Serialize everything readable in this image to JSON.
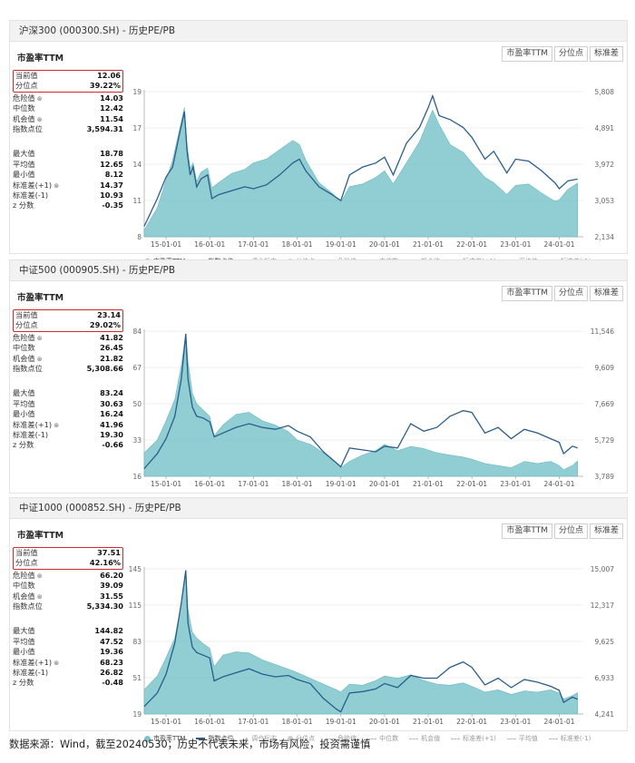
{
  "buttons": [
    "市盈率TTM",
    "分位点",
    "标准差"
  ],
  "subtitle": "市盈率TTM",
  "legend": {
    "items": [
      "市盈率TTM",
      "指数点位",
      "调仓标志",
      "分位点",
      "危险值",
      "中位数",
      "机会值",
      "标准差(+1)",
      "平均值",
      "标准差(-1)"
    ]
  },
  "colors": {
    "pe_fill": "#7cc5cb",
    "index_line": "#2a5d8a",
    "highlight": "#d42a2a",
    "header_bg": "#f2f2f2"
  },
  "footer": "数据来源：Wind，截至20240530；历史不代表未来，市场有风险，投资需谨慎",
  "panels": [
    {
      "title": "沪深300 (000300.SH) - 历史PE/PB",
      "stats": [
        {
          "label": "当前值",
          "value": "12.06"
        },
        {
          "label": "分位点",
          "value": "39.22%"
        },
        {
          "label": "危险值",
          "value": "14.03",
          "info": true
        },
        {
          "label": "中位数",
          "value": "12.42"
        },
        {
          "label": "机会值",
          "value": "11.54",
          "info": true
        },
        {
          "label": "指数点位",
          "value": "3,594.31"
        },
        {
          "label": "最大值",
          "value": "18.78"
        },
        {
          "label": "平均值",
          "value": "12.65"
        },
        {
          "label": "最小值",
          "value": "8.12"
        },
        {
          "label": "标准差(+1)",
          "value": "14.37",
          "info": true
        },
        {
          "label": "标准差(-1)",
          "value": "10.93"
        },
        {
          "label": "z 分数",
          "value": "-0.35"
        }
      ],
      "chart_data": {
        "type": "area",
        "x_ticks": [
          "15-01-01",
          "16-01-01",
          "17-01-01",
          "18-01-01",
          "19-01-01",
          "20-01-01",
          "21-01-01",
          "22-01-01",
          "23-01-01",
          "24-01-01"
        ],
        "x_range": [
          2014.5,
          2024.55
        ],
        "y_left": {
          "ticks": [
            "19",
            "17",
            "14",
            "11",
            "8"
          ],
          "range": [
            8,
            19
          ]
        },
        "y_right": {
          "ticks": [
            "5,808",
            "4,891",
            "3,972",
            "3,053",
            "2,134"
          ],
          "range": [
            2134,
            5808
          ]
        },
        "series": [
          {
            "name": "市盈率TTM",
            "kind": "area",
            "axis": "left",
            "x": [
              2014.5,
              2014.8,
              2015.0,
              2015.15,
              2015.3,
              2015.42,
              2015.48,
              2015.55,
              2015.62,
              2015.7,
              2015.8,
              2015.95,
              2016.05,
              2016.2,
              2016.5,
              2016.8,
              2017.0,
              2017.3,
              2017.6,
              2017.9,
              2018.05,
              2018.2,
              2018.5,
              2018.8,
              2019.0,
              2019.2,
              2019.5,
              2019.8,
              2020.0,
              2020.2,
              2020.5,
              2020.8,
              2021.0,
              2021.1,
              2021.25,
              2021.5,
              2021.8,
              2022.0,
              2022.3,
              2022.5,
              2022.8,
              2023.0,
              2023.3,
              2023.6,
              2023.9,
              2024.0,
              2024.2,
              2024.42
            ],
            "values": [
              8.5,
              10.2,
              12.3,
              13.8,
              16.0,
              17.8,
              15.0,
              13.2,
              13.6,
              12.2,
              12.9,
              13.2,
              11.7,
              12.1,
              12.8,
              13.1,
              13.6,
              13.9,
              14.6,
              15.3,
              15.0,
              13.8,
              12.1,
              11.3,
              10.6,
              11.8,
              12.0,
              12.5,
              13.0,
              12.0,
              13.6,
              15.2,
              16.8,
              17.6,
              16.5,
              15.0,
              14.4,
              13.6,
              12.5,
              12.1,
              11.2,
              11.9,
              12.0,
              11.3,
              10.7,
              10.8,
              11.6,
              12.06
            ]
          },
          {
            "name": "指数点位",
            "kind": "line",
            "axis": "right",
            "x": [
              2014.5,
              2014.8,
              2015.0,
              2015.15,
              2015.3,
              2015.42,
              2015.48,
              2015.55,
              2015.62,
              2015.7,
              2015.8,
              2015.95,
              2016.05,
              2016.2,
              2016.5,
              2016.8,
              2017.0,
              2017.3,
              2017.6,
              2017.9,
              2018.05,
              2018.2,
              2018.5,
              2018.8,
              2019.0,
              2019.2,
              2019.5,
              2019.8,
              2020.0,
              2020.2,
              2020.5,
              2020.8,
              2021.0,
              2021.1,
              2021.25,
              2021.5,
              2021.8,
              2022.0,
              2022.3,
              2022.5,
              2022.8,
              2023.0,
              2023.3,
              2023.6,
              2023.9,
              2024.0,
              2024.2,
              2024.42
            ],
            "values": [
              2400,
              3100,
              3650,
              3900,
              4700,
              5300,
              4300,
              3700,
              3900,
              3400,
              3600,
              3700,
              3100,
              3200,
              3300,
              3400,
              3350,
              3450,
              3700,
              4000,
              4100,
              3800,
              3400,
              3200,
              3050,
              3700,
              3900,
              4000,
              4150,
              3700,
              4500,
              4900,
              5400,
              5700,
              5200,
              5100,
              4900,
              4650,
              4100,
              4300,
              3750,
              4100,
              4050,
              3800,
              3500,
              3350,
              3550,
              3594.31
            ]
          }
        ]
      }
    },
    {
      "title": "中证500 (000905.SH) - 历史PE/PB",
      "stats": [
        {
          "label": "当前值",
          "value": "23.14"
        },
        {
          "label": "分位点",
          "value": "29.02%"
        },
        {
          "label": "危险值",
          "value": "41.82",
          "info": true
        },
        {
          "label": "中位数",
          "value": "26.45"
        },
        {
          "label": "机会值",
          "value": "21.82",
          "info": true
        },
        {
          "label": "指数点位",
          "value": "5,308.66"
        },
        {
          "label": "最大值",
          "value": "83.24"
        },
        {
          "label": "平均值",
          "value": "30.63"
        },
        {
          "label": "最小值",
          "value": "16.24"
        },
        {
          "label": "标准差(+1)",
          "value": "41.96",
          "info": true
        },
        {
          "label": "标准差(-1)",
          "value": "19.30"
        },
        {
          "label": "z 分数",
          "value": "-0.66"
        }
      ],
      "chart_data": {
        "type": "area",
        "x_ticks": [
          "15-01-01",
          "16-01-01",
          "17-01-01",
          "18-01-01",
          "19-01-01",
          "20-01-01",
          "21-01-01",
          "22-01-01",
          "23-01-01",
          "24-01-01"
        ],
        "x_range": [
          2014.5,
          2024.55
        ],
        "y_left": {
          "ticks": [
            "84",
            "67",
            "50",
            "33",
            "16"
          ],
          "range": [
            16,
            84
          ]
        },
        "y_right": {
          "ticks": [
            "11,546",
            "9,609",
            "7,669",
            "5,729",
            "3,789"
          ],
          "range": [
            3789,
            11546
          ]
        },
        "series": [
          {
            "name": "市盈率TTM",
            "kind": "area",
            "axis": "left",
            "x": [
              2014.5,
              2014.8,
              2015.0,
              2015.2,
              2015.35,
              2015.45,
              2015.5,
              2015.6,
              2015.7,
              2015.85,
              2016.0,
              2016.1,
              2016.3,
              2016.6,
              2016.9,
              2017.2,
              2017.5,
              2017.8,
              2018.0,
              2018.3,
              2018.6,
              2018.9,
              2019.0,
              2019.2,
              2019.5,
              2019.8,
              2020.0,
              2020.3,
              2020.6,
              2020.9,
              2021.2,
              2021.5,
              2021.8,
              2022.0,
              2022.3,
              2022.6,
              2022.9,
              2023.2,
              2023.5,
              2023.8,
              2024.0,
              2024.1,
              2024.3,
              2024.42
            ],
            "values": [
              27,
              33,
              42,
              52,
              68,
              83,
              70,
              55,
              50,
              47,
              44,
              35,
              40,
              45,
              46,
              42,
              40,
              37,
              33,
              31,
              27,
              22,
              20,
              23,
              26,
              28,
              31,
              28,
              30,
              29,
              27,
              26,
              25,
              24,
              22,
              21,
              20,
              23,
              22,
              23,
              21,
              19,
              21,
              23.14
            ]
          },
          {
            "name": "指数点位",
            "kind": "line",
            "axis": "right",
            "x": [
              2014.5,
              2014.8,
              2015.0,
              2015.2,
              2015.35,
              2015.45,
              2015.5,
              2015.6,
              2015.7,
              2015.85,
              2016.0,
              2016.1,
              2016.3,
              2016.6,
              2016.9,
              2017.2,
              2017.5,
              2017.8,
              2018.0,
              2018.3,
              2018.6,
              2018.9,
              2019.0,
              2019.2,
              2019.5,
              2019.8,
              2020.0,
              2020.3,
              2020.6,
              2020.9,
              2021.2,
              2021.5,
              2021.8,
              2022.0,
              2022.3,
              2022.6,
              2022.9,
              2023.2,
              2023.5,
              2023.8,
              2024.0,
              2024.1,
              2024.3,
              2024.42
            ],
            "values": [
              4200,
              5000,
              5800,
              7000,
              9000,
              11400,
              9000,
              7500,
              7000,
              6900,
              6700,
              5900,
              6100,
              6400,
              6600,
              6400,
              6300,
              6500,
              6200,
              5900,
              5100,
              4500,
              4300,
              5300,
              5200,
              5100,
              5400,
              5300,
              6600,
              6200,
              6400,
              7000,
              7300,
              7200,
              6100,
              6400,
              5800,
              6300,
              6100,
              5800,
              5600,
              5000,
              5400,
              5308.66
            ]
          }
        ]
      }
    },
    {
      "title": "中证1000 (000852.SH) - 历史PE/PB",
      "stats": [
        {
          "label": "当前值",
          "value": "37.51"
        },
        {
          "label": "分位点",
          "value": "42.16%"
        },
        {
          "label": "危险值",
          "value": "66.20",
          "info": true
        },
        {
          "label": "中位数",
          "value": "39.09"
        },
        {
          "label": "机会值",
          "value": "31.55",
          "info": true
        },
        {
          "label": "指数点位",
          "value": "5,334.30"
        },
        {
          "label": "最大值",
          "value": "144.82"
        },
        {
          "label": "平均值",
          "value": "47.52"
        },
        {
          "label": "最小值",
          "value": "19.36"
        },
        {
          "label": "标准差(+1)",
          "value": "68.23",
          "info": true
        },
        {
          "label": "标准差(-1)",
          "value": "26.82"
        },
        {
          "label": "z 分数",
          "value": "-0.48"
        }
      ],
      "chart_data": {
        "type": "area",
        "x_ticks": [
          "15-01-01",
          "16-01-01",
          "17-01-01",
          "18-01-01",
          "19-01-01",
          "20-01-01",
          "21-01-01",
          "22-01-01",
          "23-01-01",
          "24-01-01"
        ],
        "x_range": [
          2014.5,
          2024.55
        ],
        "y_left": {
          "ticks": [
            "145",
            "115",
            "83",
            "51",
            "19"
          ],
          "range": [
            19,
            145
          ]
        },
        "y_right": {
          "ticks": [
            "15,007",
            "12,317",
            "9,625",
            "6,933",
            "4,241"
          ],
          "range": [
            4241,
            15007
          ]
        },
        "series": [
          {
            "name": "市盈率TTM",
            "kind": "area",
            "axis": "left",
            "x": [
              2014.5,
              2014.8,
              2015.0,
              2015.2,
              2015.35,
              2015.45,
              2015.5,
              2015.6,
              2015.7,
              2015.85,
              2016.0,
              2016.1,
              2016.3,
              2016.6,
              2016.9,
              2017.2,
              2017.5,
              2017.8,
              2018.0,
              2018.3,
              2018.6,
              2018.9,
              2019.0,
              2019.2,
              2019.5,
              2019.8,
              2020.0,
              2020.3,
              2020.6,
              2020.9,
              2021.2,
              2021.5,
              2021.8,
              2022.0,
              2022.3,
              2022.6,
              2022.9,
              2023.2,
              2023.5,
              2023.8,
              2024.0,
              2024.1,
              2024.3,
              2024.42
            ],
            "values": [
              40,
              52,
              68,
              85,
              115,
              143,
              110,
              90,
              85,
              80,
              76,
              60,
              70,
              73,
              72,
              66,
              62,
              58,
              55,
              50,
              45,
              40,
              38,
              45,
              44,
              48,
              52,
              50,
              53,
              48,
              45,
              44,
              46,
              43,
              38,
              40,
              36,
              39,
              38,
              40,
              37,
              32,
              35,
              37.51
            ]
          },
          {
            "name": "指数点位",
            "kind": "line",
            "axis": "right",
            "x": [
              2014.5,
              2014.8,
              2015.0,
              2015.2,
              2015.35,
              2015.45,
              2015.5,
              2015.6,
              2015.7,
              2015.85,
              2016.0,
              2016.1,
              2016.3,
              2016.6,
              2016.9,
              2017.2,
              2017.5,
              2017.8,
              2018.0,
              2018.3,
              2018.6,
              2018.9,
              2019.0,
              2019.2,
              2019.5,
              2019.8,
              2020.0,
              2020.3,
              2020.6,
              2020.9,
              2021.2,
              2021.5,
              2021.8,
              2022.0,
              2022.3,
              2022.6,
              2022.9,
              2023.2,
              2023.5,
              2023.8,
              2024.0,
              2024.1,
              2024.3,
              2024.42
            ],
            "values": [
              4800,
              5800,
              7200,
              9500,
              12500,
              14900,
              11000,
              9200,
              8800,
              8600,
              8400,
              6700,
              7000,
              7300,
              7600,
              7200,
              7000,
              7100,
              6800,
              6500,
              5400,
              4600,
              4400,
              5800,
              5900,
              6100,
              6500,
              6200,
              7100,
              6900,
              6900,
              7700,
              8100,
              7700,
              6400,
              6900,
              6200,
              6800,
              6600,
              6300,
              6000,
              5100,
              5500,
              5334.3
            ]
          }
        ]
      }
    }
  ]
}
